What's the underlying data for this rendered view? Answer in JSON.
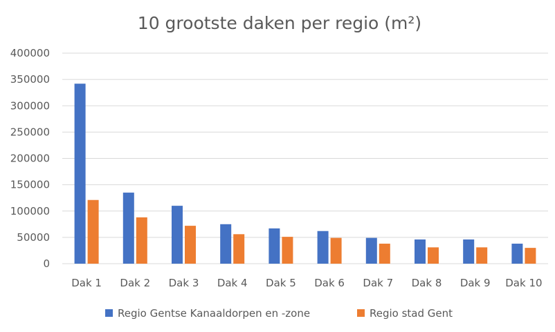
{
  "chart_data": {
    "type": "bar",
    "title": "10 grootste daken per regio (m²)",
    "categories": [
      "Dak 1",
      "Dak 2",
      "Dak 3",
      "Dak 4",
      "Dak 5",
      "Dak 6",
      "Dak 7",
      "Dak 8",
      "Dak 9",
      "Dak 10"
    ],
    "series": [
      {
        "name": "Regio Gentse Kanaaldorpen en -zone",
        "color": "#4472C4",
        "values": [
          342000,
          135000,
          110000,
          75000,
          67000,
          62000,
          49000,
          46000,
          46000,
          38000
        ]
      },
      {
        "name": "Regio stad Gent",
        "color": "#ED7D31",
        "values": [
          121000,
          88000,
          72000,
          56000,
          51000,
          49000,
          38000,
          31000,
          31000,
          30000
        ]
      }
    ],
    "ylim": [
      0,
      400000
    ],
    "yticks": [
      "0",
      "50000",
      "100000",
      "150000",
      "200000",
      "250000",
      "300000",
      "350000",
      "400000"
    ],
    "grid": true,
    "legend": "bottom"
  }
}
